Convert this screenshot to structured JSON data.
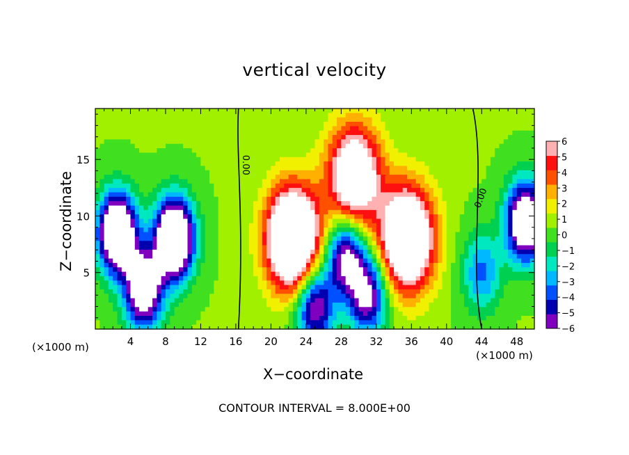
{
  "chart_data": {
    "type": "heatmap",
    "title": "vertical velocity",
    "xlabel": "X−coordinate",
    "ylabel": "Z−coordinate",
    "x_unit_label": "(×1000 m)",
    "xlim": [
      0,
      50
    ],
    "ylim": [
      0,
      19.5
    ],
    "x_ticks": [
      4,
      8,
      12,
      16,
      20,
      24,
      28,
      32,
      36,
      40,
      44,
      48
    ],
    "x_tick_labels": [
      "4",
      "8",
      "12",
      "16",
      "20",
      "24",
      "28",
      "32",
      "36",
      "40",
      "44",
      "48"
    ],
    "y_ticks": [
      5,
      10,
      15
    ],
    "y_tick_labels": [
      "5",
      "10",
      "15"
    ],
    "colorbar": {
      "min": -6,
      "max": 6,
      "ticks": [
        6,
        5,
        4,
        3,
        2,
        1,
        0,
        -1,
        -2,
        -3,
        -4,
        -5,
        -6
      ],
      "tick_labels": [
        "6",
        "5",
        "4",
        "3",
        "2",
        "1",
        "0",
        "−1",
        "−2",
        "−3",
        "−4",
        "−5",
        "−6"
      ],
      "colors": [
        "#8000c0",
        "#0000b0",
        "#0050ff",
        "#00b8ff",
        "#00e8c0",
        "#00d050",
        "#40e020",
        "#a0f000",
        "#f0f000",
        "#ffb000",
        "#ff5000",
        "#ff1010",
        "#ffb0b0"
      ]
    },
    "zero_contour_labels": [
      "0.00",
      "0.00"
    ],
    "contour_interval_text": "CONTOUR INTERVAL = 8.000E+00",
    "features": [
      {
        "kind": "updraft",
        "x": 22.5,
        "z": 8.0,
        "peak": 12
      },
      {
        "kind": "updraft",
        "x": 29.5,
        "z": 13.5,
        "peak": 9
      },
      {
        "kind": "updraft",
        "x": 35.5,
        "z": 8.0,
        "peak": 11
      },
      {
        "kind": "downdraft",
        "x": 2.5,
        "z": 8.5,
        "peak": -11
      },
      {
        "kind": "downdraft",
        "x": 9.0,
        "z": 8.0,
        "peak": -12
      },
      {
        "kind": "downdraft",
        "x": 5.5,
        "z": 3.5,
        "peak": -9
      },
      {
        "kind": "downdraft",
        "x": 49.0,
        "z": 9.5,
        "peak": -10
      },
      {
        "kind": "downdraft",
        "x": 28.5,
        "z": 6.5,
        "peak": -7
      },
      {
        "kind": "downdraft",
        "x": 31.0,
        "z": 3.0,
        "peak": -7
      },
      {
        "kind": "downdraft",
        "x": 25.0,
        "z": 2.0,
        "peak": -7
      },
      {
        "kind": "downdraft",
        "x": 44.0,
        "z": 5.0,
        "peak": -4
      }
    ]
  }
}
